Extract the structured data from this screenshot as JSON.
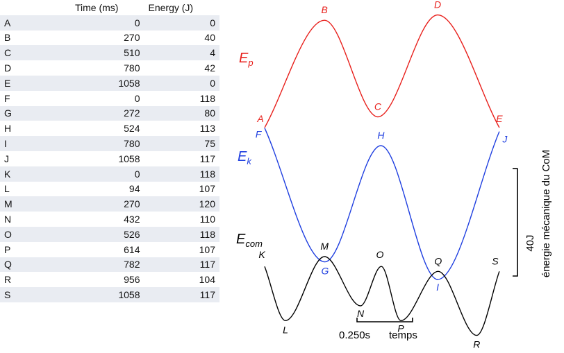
{
  "table": {
    "headers": [
      "",
      "Time (ms)",
      "Energy (J)"
    ],
    "rows": [
      [
        "A",
        "0",
        "0"
      ],
      [
        "B",
        "270",
        "40"
      ],
      [
        "C",
        "510",
        "4"
      ],
      [
        "D",
        "780",
        "42"
      ],
      [
        "E",
        "1058",
        "0"
      ],
      [
        "F",
        "0",
        "118"
      ],
      [
        "G",
        "272",
        "80"
      ],
      [
        "H",
        "524",
        "113"
      ],
      [
        "I",
        "780",
        "75"
      ],
      [
        "J",
        "1058",
        "117"
      ],
      [
        "K",
        "0",
        "118"
      ],
      [
        "L",
        "94",
        "107"
      ],
      [
        "M",
        "270",
        "120"
      ],
      [
        "N",
        "432",
        "110"
      ],
      [
        "O",
        "526",
        "118"
      ],
      [
        "P",
        "614",
        "107"
      ],
      [
        "Q",
        "782",
        "117"
      ],
      [
        "R",
        "956",
        "104"
      ],
      [
        "S",
        "1058",
        "117"
      ]
    ]
  },
  "chart_data": {
    "type": "line",
    "x_unit": "ms",
    "y_unit": "J",
    "series": [
      {
        "name_main": "E",
        "name_sub": "p",
        "color": "#e8201c",
        "points": [
          {
            "label": "A",
            "t": 0,
            "e": 0
          },
          {
            "label": "B",
            "t": 270,
            "e": 40
          },
          {
            "label": "C",
            "t": 510,
            "e": 4
          },
          {
            "label": "D",
            "t": 780,
            "e": 42
          },
          {
            "label": "E",
            "t": 1058,
            "e": 0
          }
        ]
      },
      {
        "name_main": "E",
        "name_sub": "k",
        "color": "#1f3fe0",
        "points": [
          {
            "label": "F",
            "t": 0,
            "e": 118
          },
          {
            "label": "G",
            "t": 272,
            "e": 80
          },
          {
            "label": "H",
            "t": 524,
            "e": 113
          },
          {
            "label": "I",
            "t": 780,
            "e": 75
          },
          {
            "label": "J",
            "t": 1058,
            "e": 117
          }
        ]
      },
      {
        "name_main": "E",
        "name_sub": "com",
        "color": "#000000",
        "points": [
          {
            "label": "K",
            "t": 0,
            "e": 118
          },
          {
            "label": "L",
            "t": 94,
            "e": 107
          },
          {
            "label": "M",
            "t": 270,
            "e": 120
          },
          {
            "label": "N",
            "t": 432,
            "e": 110
          },
          {
            "label": "O",
            "t": 526,
            "e": 118
          },
          {
            "label": "P",
            "t": 614,
            "e": 107
          },
          {
            "label": "Q",
            "t": 782,
            "e": 117
          },
          {
            "label": "R",
            "t": 956,
            "e": 104
          },
          {
            "label": "S",
            "t": 1058,
            "e": 117
          }
        ]
      }
    ],
    "time_scale": {
      "label": "0.250s",
      "unit_label": "temps",
      "value_ms": 250
    },
    "energy_scale": {
      "label": "40J",
      "value_j": 40
    },
    "ylabel": "énergie mécanique du CoM"
  }
}
